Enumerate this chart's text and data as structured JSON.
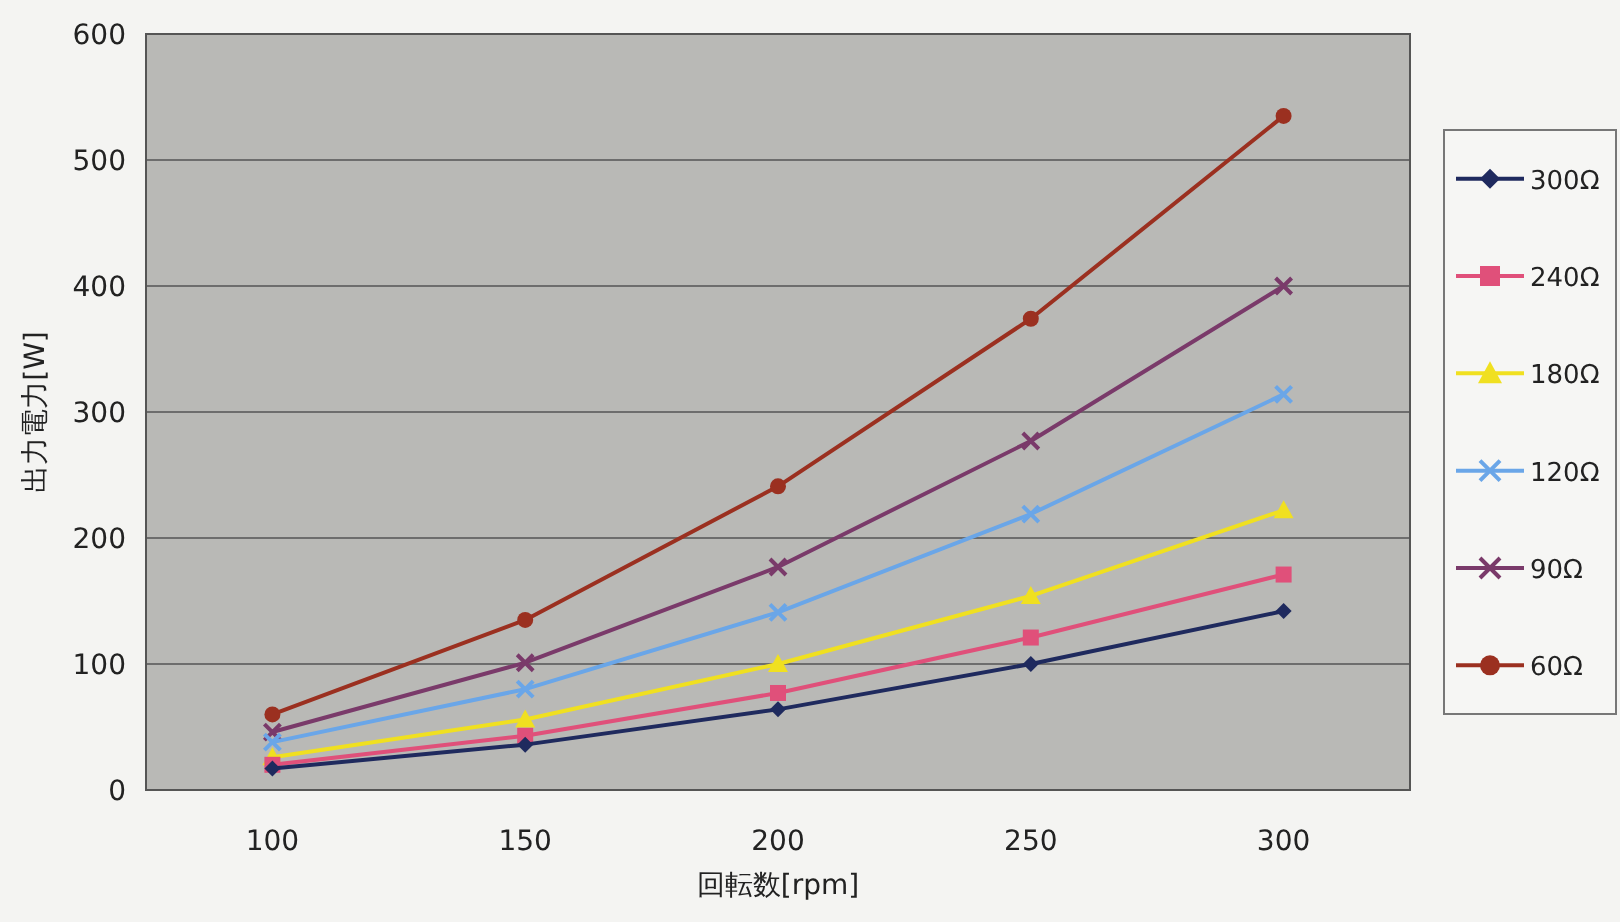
{
  "chart_data": {
    "type": "line",
    "xlabel": "回転数[rpm]",
    "ylabel": "出力電力[W]",
    "x": [
      100,
      150,
      200,
      250,
      300
    ],
    "xlim": [
      75,
      325
    ],
    "xticks": [
      100,
      150,
      200,
      250,
      300
    ],
    "ylim": [
      0,
      600
    ],
    "yticks": [
      0,
      100,
      200,
      300,
      400,
      500,
      600
    ],
    "grid": "y",
    "legend": "right",
    "series": [
      {
        "name": "300Ω",
        "color": "#1f2a5e",
        "marker": "diamond",
        "values": [
          17,
          36,
          64,
          100,
          142
        ]
      },
      {
        "name": "240Ω",
        "color": "#e0507a",
        "marker": "square",
        "values": [
          20,
          43,
          77,
          121,
          171
        ]
      },
      {
        "name": "180Ω",
        "color": "#f0e020",
        "marker": "triangle",
        "values": [
          26,
          56,
          100,
          154,
          222
        ]
      },
      {
        "name": "120Ω",
        "color": "#6aa6e8",
        "marker": "cross",
        "values": [
          38,
          80,
          141,
          219,
          314
        ]
      },
      {
        "name": "90Ω",
        "color": "#7a3a6a",
        "marker": "cross",
        "values": [
          46,
          101,
          177,
          277,
          400
        ]
      },
      {
        "name": "60Ω",
        "color": "#9b3020",
        "marker": "circle",
        "values": [
          60,
          135,
          241,
          374,
          535
        ]
      }
    ]
  }
}
